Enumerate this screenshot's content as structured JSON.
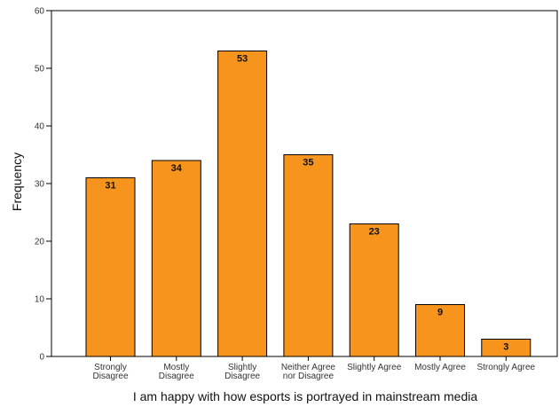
{
  "chart_data": {
    "type": "bar",
    "categories": [
      [
        "Strongly",
        "Disagree"
      ],
      [
        "Mostly",
        "Disagree"
      ],
      [
        "Slightly",
        "Disagree"
      ],
      [
        "Neither Agree",
        "nor Disagree"
      ],
      [
        "Slightly Agree"
      ],
      [
        "Mostly Agree"
      ],
      [
        "Strongly Agree"
      ]
    ],
    "values": [
      31,
      34,
      53,
      35,
      23,
      9,
      3
    ],
    "xlabel": "I am happy with how esports is portrayed in mainstream media",
    "ylabel": "Frequency",
    "ylim": [
      0,
      60
    ],
    "yticks": [
      0,
      10,
      20,
      30,
      40,
      50,
      60
    ],
    "grid": false,
    "bar_color": "#f7941d",
    "bar_edge_color": "#000000"
  }
}
